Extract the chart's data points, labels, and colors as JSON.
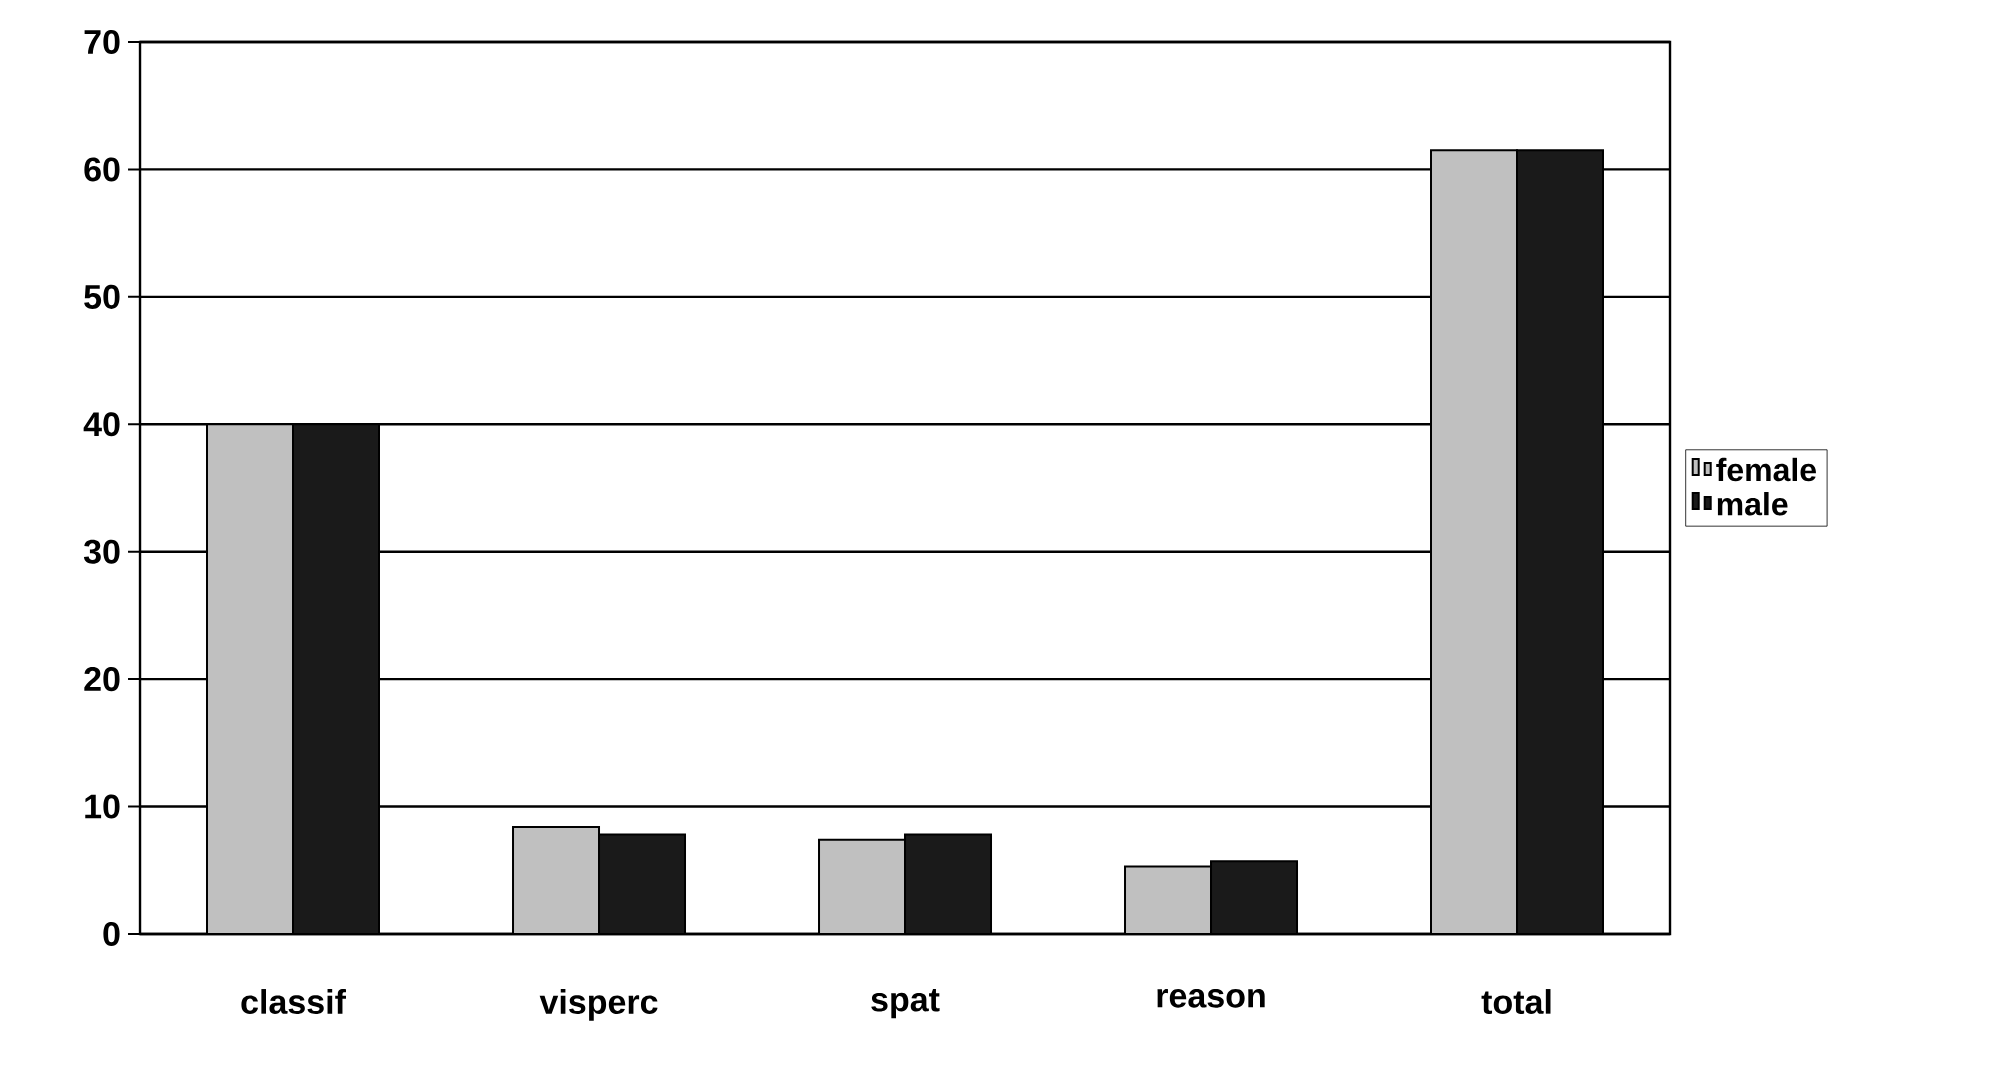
{
  "chart_data": {
    "type": "bar",
    "categories": [
      "classif",
      "visperc",
      "spat",
      "reason",
      "total"
    ],
    "series": [
      {
        "name": "female",
        "color": "#c0c0c0",
        "values": [
          40,
          8.4,
          7.4,
          5.3,
          61.5
        ]
      },
      {
        "name": "male",
        "color": "#1a1a1a",
        "values": [
          40,
          7.8,
          7.8,
          5.7,
          61.5
        ]
      }
    ],
    "ylim": [
      0,
      70
    ],
    "yticks": [
      0,
      10,
      20,
      30,
      40,
      50,
      60,
      70
    ],
    "grid": "y",
    "legend": "right"
  }
}
